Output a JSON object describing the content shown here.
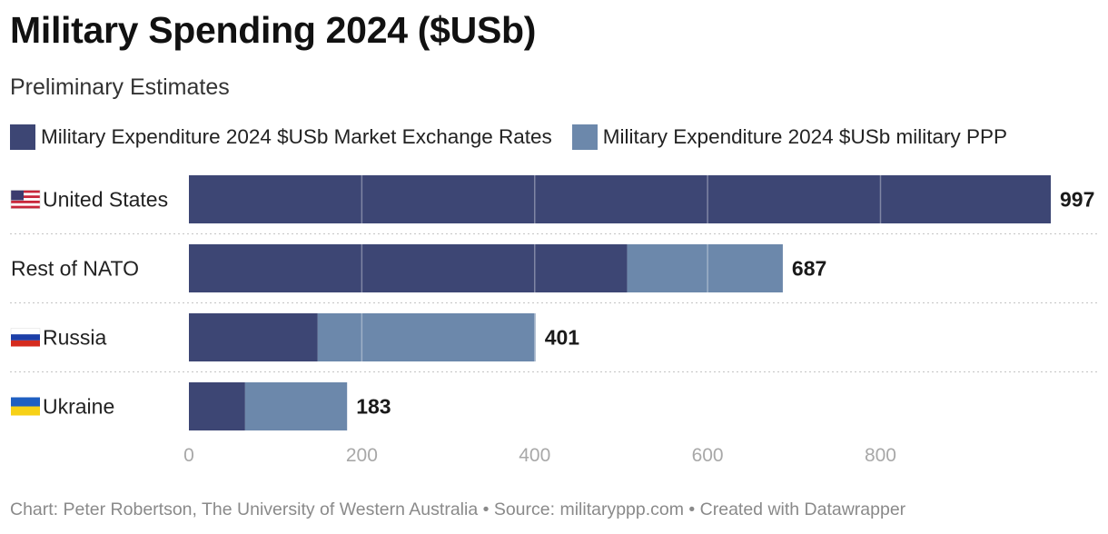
{
  "title": "Military Spending 2024 ($USb)",
  "subtitle": "Preliminary Estimates",
  "footer": "Chart: Peter Robertson, The University of Western Australia • Source: militaryppp.com • Created with Datawrapper",
  "colors": {
    "market": "#3d4674",
    "ppp": "#6c88ab",
    "grid": "#d6d6d6",
    "tick": "#a8a8a8",
    "text": "#222222"
  },
  "chart_data": {
    "type": "bar",
    "orientation": "horizontal",
    "stacked": true,
    "title": "Military Spending 2024 ($USb)",
    "subtitle": "Preliminary Estimates",
    "categories": [
      "United States",
      "Rest of NATO",
      "Russia",
      "Ukraine"
    ],
    "flags": [
      "us",
      "",
      "ru",
      "ua"
    ],
    "series": [
      {
        "name": "Military Expenditure 2024 $USb Market Exchange Rates",
        "color": "#3d4674",
        "values": [
          997,
          507,
          149,
          65
        ]
      },
      {
        "name": "Military Expenditure 2024 $USb military PPP",
        "color": "#6c88ab",
        "values": [
          0,
          180,
          252,
          118
        ]
      }
    ],
    "value_labels": [
      "997",
      "687",
      "401",
      "183"
    ],
    "xlim": [
      0,
      997
    ],
    "xticks": [
      0,
      200,
      400,
      600,
      800
    ],
    "grid": true,
    "legend": "top-left"
  }
}
